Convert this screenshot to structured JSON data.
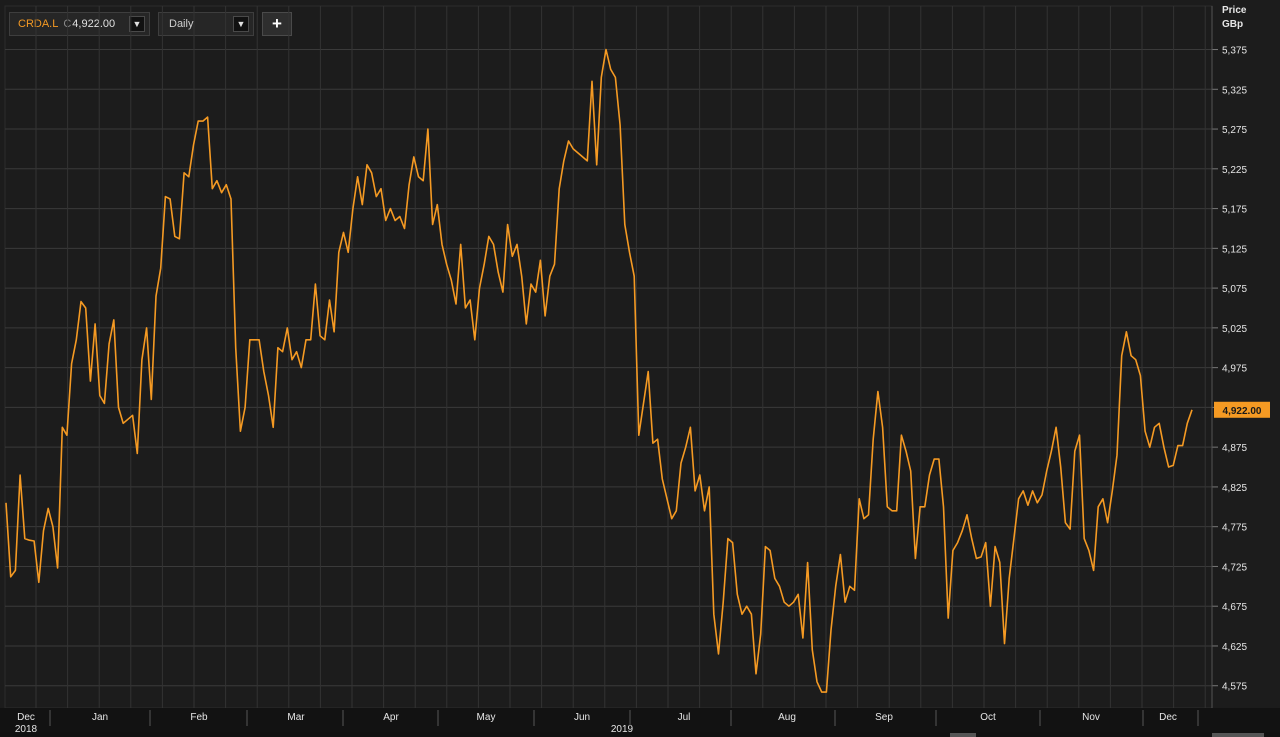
{
  "toolbar": {
    "symbol": "CRDA.L",
    "price_prefix": "C",
    "price_value": "4,922.00",
    "interval": "Daily",
    "add_label": "+",
    "dropdown_icon": "caret-down-icon"
  },
  "colors": {
    "background": "#1c1c1c",
    "grid": "#3a3a3a",
    "series": "#f59a23",
    "label_bg": "#f59a23"
  },
  "chart_data": {
    "type": "line",
    "title": "",
    "y_axis_title": "Price",
    "y_axis_unit": "GBp",
    "y_ticks": [
      5375,
      5325,
      5275,
      5225,
      5175,
      5125,
      5075,
      5025,
      4975,
      4925,
      4875,
      4825,
      4775,
      4725,
      4675,
      4625,
      4575
    ],
    "y_tick_labels": [
      "5,375",
      "5,325",
      "5,275",
      "5,225",
      "5,175",
      "5,125",
      "5,075",
      "5,025",
      "4,975",
      "4,925",
      "4,875",
      "4,825",
      "4,775",
      "4,725",
      "4,675",
      "4,625",
      "4,575"
    ],
    "ylim": [
      4547,
      5392
    ],
    "x_month_labels": [
      "Dec",
      "Jan",
      "Feb",
      "Mar",
      "Apr",
      "May",
      "Jun",
      "Jul",
      "Aug",
      "Sep",
      "Oct",
      "Nov",
      "Dec"
    ],
    "x_year_labels": [
      "2018",
      "2019"
    ],
    "last_value_label": "4,922.00",
    "last_value": 4922,
    "grid": true,
    "series": [
      {
        "values": [
          4805,
          4712,
          4720,
          4840,
          4760,
          4758,
          4757,
          4705,
          4770,
          4798,
          4775,
          4723,
          4900,
          4890,
          4980,
          5010,
          5058,
          5050,
          4958,
          5030,
          4940,
          4930,
          5005,
          5035,
          4925,
          4905,
          4910,
          4915,
          4867,
          4985,
          5025,
          4935,
          5065,
          5100,
          5190,
          5187,
          5140,
          5137,
          5220,
          5215,
          5255,
          5285,
          5285,
          5290,
          5200,
          5210,
          5195,
          5205,
          5187,
          5000,
          4895,
          4925,
          5010,
          5010,
          5010,
          4970,
          4940,
          4900,
          5000,
          4995,
          5025,
          4985,
          4995,
          4975,
          5010,
          5010,
          5080,
          5015,
          5010,
          5060,
          5020,
          5120,
          5145,
          5120,
          5175,
          5215,
          5180,
          5230,
          5220,
          5190,
          5200,
          5160,
          5175,
          5160,
          5165,
          5150,
          5205,
          5240,
          5215,
          5210,
          5275,
          5155,
          5180,
          5130,
          5105,
          5085,
          5055,
          5130,
          5050,
          5060,
          5010,
          5075,
          5105,
          5140,
          5130,
          5095,
          5070,
          5155,
          5115,
          5130,
          5090,
          5030,
          5080,
          5070,
          5110,
          5040,
          5090,
          5105,
          5200,
          5235,
          5260,
          5250,
          5245,
          5240,
          5235,
          5335,
          5230,
          5340,
          5375,
          5350,
          5340,
          5280,
          5155,
          5120,
          5090,
          4890,
          4930,
          4970,
          4880,
          4885,
          4835,
          4810,
          4785,
          4795,
          4855,
          4875,
          4900,
          4820,
          4840,
          4795,
          4825,
          4665,
          4615,
          4680,
          4760,
          4755,
          4690,
          4665,
          4675,
          4665,
          4590,
          4640,
          4750,
          4745,
          4710,
          4700,
          4680,
          4675,
          4680,
          4690,
          4635,
          4730,
          4620,
          4580,
          4567,
          4567,
          4645,
          4700,
          4740,
          4680,
          4700,
          4695,
          4810,
          4785,
          4790,
          4885,
          4945,
          4900,
          4800,
          4795,
          4795,
          4890,
          4870,
          4845,
          4735,
          4800,
          4800,
          4840,
          4860,
          4860,
          4800,
          4660,
          4745,
          4755,
          4770,
          4790,
          4760,
          4735,
          4737,
          4755,
          4675,
          4750,
          4730,
          4628,
          4710,
          4760,
          4810,
          4820,
          4802,
          4820,
          4805,
          4815,
          4845,
          4870,
          4900,
          4850,
          4780,
          4772,
          4870,
          4890,
          4760,
          4745,
          4720,
          4800,
          4810,
          4780,
          4820,
          4865,
          4990,
          5020,
          4990,
          4985,
          4965,
          4895,
          4875,
          4900,
          4905,
          4875,
          4850,
          4852,
          4877,
          4877,
          4905,
          4922
        ]
      }
    ]
  }
}
